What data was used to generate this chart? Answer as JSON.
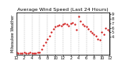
{
  "title": "Average Wind Speed (Last 24 Hours)",
  "ylabel": "Milwaukee Weather",
  "ylim": [
    0,
    9.5
  ],
  "xlim": [
    0,
    24
  ],
  "background_color": "#ffffff",
  "line_color": "#cc0000",
  "grid_color": "#888888",
  "x_values": [
    0,
    0.5,
    1,
    1.5,
    2,
    2.5,
    3,
    3.5,
    4,
    4.5,
    5,
    5.5,
    6,
    6.5,
    7,
    7.5,
    8,
    8.5,
    9,
    9.5,
    10,
    10.5,
    11,
    11.5,
    12,
    12.5,
    13,
    13.5,
    14,
    14.5,
    15,
    15.5,
    16,
    16.5,
    17,
    17.5,
    18,
    18.5,
    19,
    19.5,
    20,
    20.5,
    21,
    21.5,
    22,
    22.5,
    23,
    23.5,
    24
  ],
  "y_values": [
    0.4,
    0.3,
    0.3,
    0.2,
    0.4,
    0.3,
    0.2,
    0.4,
    0.3,
    0.2,
    0.3,
    0.4,
    0.5,
    1.2,
    2.0,
    2.8,
    3.5,
    4.2,
    5.0,
    5.8,
    6.2,
    6.5,
    6.7,
    6.5,
    6.8,
    7.0,
    6.8,
    6.5,
    7.0,
    7.2,
    6.8,
    5.5,
    8.5,
    7.5,
    6.8,
    6.5,
    6.2,
    5.8,
    5.2,
    4.8,
    4.5,
    4.2,
    3.5,
    3.2,
    5.0,
    4.5,
    6.0,
    5.5,
    5.2
  ],
  "x_tick_positions": [
    0,
    2,
    4,
    6,
    8,
    10,
    12,
    14,
    16,
    18,
    20,
    22,
    24
  ],
  "x_tick_labels": [
    "12",
    "2",
    "4",
    "6",
    "8",
    "10",
    "12",
    "2",
    "4",
    "6",
    "8",
    "10",
    "12"
  ],
  "vgrid_positions": [
    2,
    4,
    6,
    8,
    10,
    12,
    14,
    16,
    18,
    20,
    22
  ],
  "y_tick_positions": [
    4,
    5,
    6,
    7,
    8,
    9
  ],
  "title_fontsize": 4.5,
  "tick_fontsize": 3.5,
  "ylabel_fontsize": 3.5
}
